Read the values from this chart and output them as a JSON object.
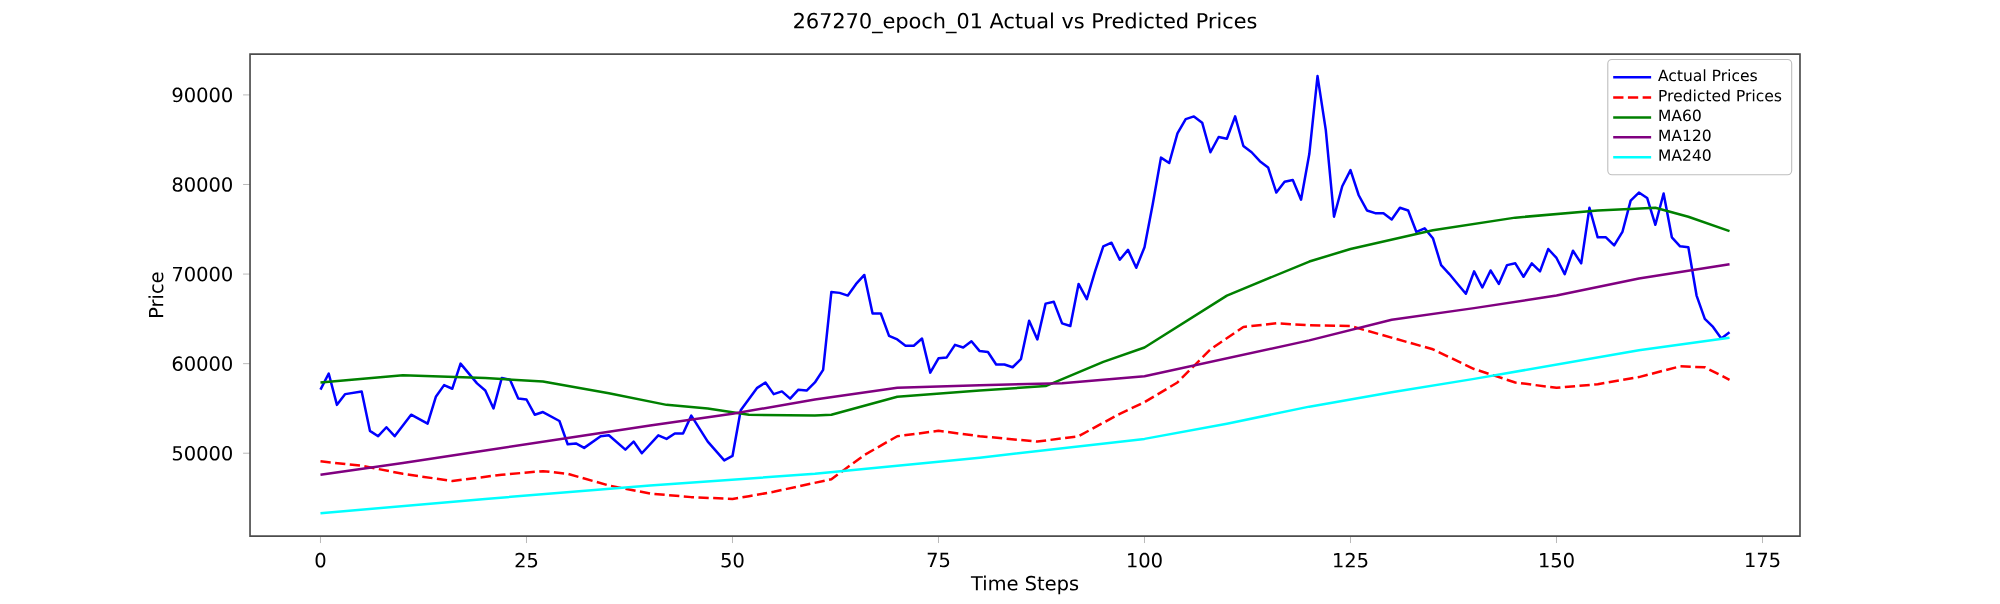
{
  "chart_data": {
    "type": "line",
    "title": "267270_epoch_01 Actual vs Predicted Prices",
    "xlabel": "Time Steps",
    "ylabel": "Price",
    "xlim": [
      -8.55,
      179.55
    ],
    "ylim": [
      40750,
      94550
    ],
    "xticks": [
      0,
      25,
      50,
      75,
      100,
      125,
      150,
      175
    ],
    "yticks": [
      50000,
      60000,
      70000,
      80000,
      90000
    ],
    "grid": false,
    "legend": "top right",
    "marker": "none",
    "series": [
      {
        "name": "Actual Prices",
        "color": "#0000ff",
        "line_style": "solid",
        "x": [
          0,
          1,
          2,
          3,
          5,
          6,
          7,
          8,
          9,
          11,
          13,
          14,
          15,
          16,
          17,
          19,
          20,
          21,
          22,
          23,
          24,
          25,
          26,
          27,
          29,
          30,
          31,
          32,
          34,
          35,
          37,
          38,
          39,
          41,
          42,
          43,
          44,
          45,
          47,
          49,
          50,
          51,
          53,
          54,
          55,
          56,
          57,
          58,
          59,
          60,
          61,
          62,
          63,
          64,
          65,
          66,
          67,
          68,
          69,
          70,
          71,
          72,
          73,
          74,
          75,
          76,
          77,
          78,
          79,
          80,
          81,
          82,
          83,
          84,
          85,
          86,
          87,
          88,
          89,
          90,
          91,
          92,
          93,
          94,
          95,
          96,
          97,
          98,
          99,
          100,
          101,
          102,
          103,
          104,
          105,
          106,
          107,
          108,
          109,
          110,
          111,
          112,
          113,
          114,
          115,
          116,
          117,
          118,
          119,
          120,
          121,
          122,
          123,
          124,
          125,
          126,
          127,
          128,
          129,
          130,
          131,
          132,
          133,
          134,
          135,
          136,
          137,
          138,
          139,
          140,
          141,
          142,
          143,
          144,
          145,
          146,
          147,
          148,
          149,
          150,
          151,
          152,
          153,
          154,
          155,
          156,
          157,
          158,
          159,
          160,
          161,
          162,
          163,
          164,
          165,
          166,
          167,
          168,
          169,
          170,
          171
        ],
        "values": [
          57100,
          58900,
          55400,
          56600,
          56900,
          52500,
          51900,
          52900,
          51900,
          54300,
          53300,
          56300,
          57600,
          57200,
          60000,
          57800,
          57000,
          55000,
          58400,
          58200,
          56100,
          56000,
          54300,
          54600,
          53600,
          51000,
          51100,
          50600,
          51900,
          52000,
          50400,
          51300,
          50000,
          52000,
          51600,
          52200,
          52200,
          54200,
          51300,
          49200,
          49700,
          54800,
          57300,
          57900,
          56600,
          56900,
          56100,
          57100,
          57000,
          57900,
          59300,
          68000,
          67900,
          67600,
          68900,
          69900,
          65600,
          65600,
          63100,
          62700,
          62000,
          62000,
          62800,
          59000,
          60600,
          60700,
          62100,
          61800,
          62500,
          61400,
          61300,
          59900,
          59900,
          59600,
          60500,
          64800,
          62700,
          66700,
          66900,
          64500,
          64200,
          68900,
          67200,
          70300,
          73100,
          73500,
          71600,
          72700,
          70700,
          73000,
          77800,
          83000,
          82400,
          85700,
          87300,
          87600,
          86900,
          83600,
          85300,
          85100,
          87600,
          84300,
          83600,
          82600,
          81900,
          79100,
          80300,
          80500,
          78300,
          83400,
          92100,
          86100,
          76400,
          79800,
          81600,
          78800,
          77100,
          76800,
          76800,
          76100,
          77400,
          77100,
          74700,
          75100,
          74000,
          71000,
          70000,
          68900,
          67800,
          70300,
          68500,
          70400,
          68900,
          71000,
          71200,
          69700,
          71200,
          70300,
          72800,
          71800,
          70000,
          72600,
          71200,
          77400,
          74100,
          74100,
          73200,
          74700,
          78200,
          79100,
          78500,
          75500,
          79000,
          74100,
          73100,
          73000,
          67600,
          65000,
          64100,
          62800,
          63500
        ]
      },
      {
        "name": "Predicted Prices",
        "color": "#ff0000",
        "line_style": "dashed",
        "x": [
          0,
          5,
          10,
          16,
          22,
          27,
          30,
          35,
          40,
          45,
          50,
          52,
          55,
          62,
          66,
          70,
          75,
          80,
          87,
          92,
          97,
          100,
          104,
          108,
          112,
          116,
          120,
          125,
          130,
          135,
          140,
          145,
          150,
          155,
          160,
          165,
          168,
          171
        ],
        "values": [
          49100,
          48600,
          47700,
          46900,
          47600,
          48000,
          47700,
          46400,
          45500,
          45100,
          44900,
          45200,
          45700,
          47100,
          49800,
          51900,
          52500,
          51900,
          51300,
          51900,
          54400,
          55700,
          57900,
          61600,
          64100,
          64500,
          64300,
          64200,
          62900,
          61600,
          59400,
          57900,
          57300,
          57700,
          58500,
          59700,
          59600,
          58200
        ]
      },
      {
        "name": "MA60",
        "color": "#008000",
        "line_style": "solid",
        "x": [
          0,
          10,
          20,
          27,
          35,
          42,
          47,
          52,
          60,
          62,
          70,
          80,
          88,
          95,
          100,
          110,
          120,
          125,
          135,
          145,
          155,
          162,
          166,
          171
        ],
        "values": [
          57900,
          58700,
          58400,
          58000,
          56700,
          55400,
          55000,
          54300,
          54200,
          54300,
          56300,
          57000,
          57500,
          60200,
          61800,
          67600,
          71400,
          72800,
          74900,
          76300,
          77100,
          77400,
          76400,
          74800
        ]
      },
      {
        "name": "MA120",
        "color": "#800080",
        "line_style": "solid",
        "x": [
          0,
          10,
          20,
          30,
          40,
          50,
          60,
          70,
          80,
          90,
          100,
          110,
          120,
          130,
          140,
          150,
          160,
          171
        ],
        "values": [
          47600,
          48900,
          50300,
          51700,
          53100,
          54400,
          56000,
          57300,
          57600,
          57800,
          58600,
          60600,
          62600,
          64900,
          66200,
          67600,
          69500,
          71100
        ]
      },
      {
        "name": "MA240",
        "color": "#00ffff",
        "line_style": "solid",
        "x": [
          0,
          20,
          40,
          60,
          80,
          100,
          110,
          120,
          130,
          140,
          150,
          160,
          171
        ],
        "values": [
          43300,
          44900,
          46400,
          47700,
          49500,
          51600,
          53300,
          55200,
          56800,
          58300,
          59900,
          61500,
          62900
        ]
      }
    ]
  }
}
